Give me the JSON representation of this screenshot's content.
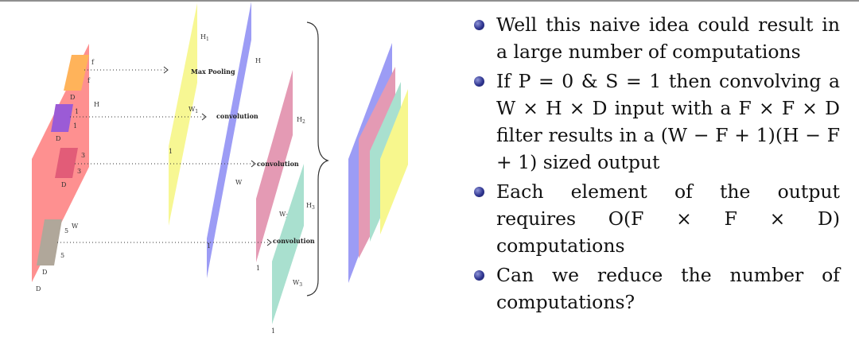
{
  "colors": {
    "input": "#fe8a8a",
    "pool": "#f7f78d",
    "conv1": "#9c9cf5",
    "conv2": "#e49ab4",
    "conv3": "#a9e0cf",
    "orange": "#ffb35a",
    "purple": "#9b5bd6",
    "red": "#e25c78",
    "gray": "#b0a79a",
    "bullet": "#2f3590"
  },
  "diagram": {
    "input_labels": {
      "f_top": "f",
      "f_side": "f",
      "d1": "D",
      "one_a": "1",
      "one_b": "1",
      "d2": "D",
      "h": "H",
      "three_a": "3",
      "three_b": "3",
      "d3": "D",
      "five_a": "5",
      "five_b": "5",
      "d4": "D",
      "w": "W",
      "d_bottom": "D"
    },
    "ops": {
      "max_pooling": "Max Pooling",
      "convolution1": "convolution",
      "convolution2": "convolution",
      "convolution3": "convolution"
    },
    "pool_labels": {
      "h1": "H",
      "h1_sub": "1",
      "w1": "W",
      "w1_sub": "1",
      "one": "1"
    },
    "conv1_labels": {
      "h": "H",
      "w": "W",
      "one": "1"
    },
    "conv2_labels": {
      "h2": "H",
      "h2_sub": "2",
      "w2": "W",
      "w2_sub": "2",
      "one": "1"
    },
    "conv3_labels": {
      "h3": "H",
      "h3_sub": "3",
      "w3": "W",
      "w3_sub": "3",
      "one": "1"
    }
  },
  "bullets": [
    "Well this naive idea could result in a large number of computations",
    "If P = 0 & S = 1 then convolving a W × H × D input with a F × F × D filter results in a (W − F + 1)(H − F + 1) sized output",
    "Each element of the output requires O(F × F × D) computations",
    "Can we reduce the number of computations?"
  ]
}
